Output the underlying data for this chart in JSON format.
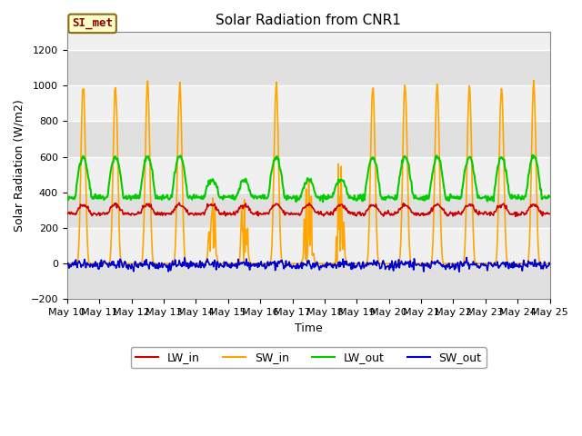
{
  "title": "Solar Radiation from CNR1",
  "xlabel": "Time",
  "ylabel": "Solar Radiation (W/m2)",
  "ylim": [
    -200,
    1300
  ],
  "x_tick_labels": [
    "May 10",
    "May 11",
    "May 12",
    "May 13",
    "May 14",
    "May 15",
    "May 16",
    "May 17",
    "May 18",
    "May 19",
    "May 20",
    "May 21",
    "May 22",
    "May 23",
    "May 24",
    "May 25"
  ],
  "legend_label": "SI_met",
  "legend_box_facecolor": "#ffffcc",
  "legend_box_edgecolor": "#8b6914",
  "legend_text_color": "#8b0000",
  "fig_facecolor": "#ffffff",
  "plot_facecolor": "#f0f0f0",
  "colors": {
    "LW_in": "#cc0000",
    "SW_in": "#ffa500",
    "LW_out": "#00cc00",
    "SW_out": "#0000cc"
  },
  "grid_color": "#ffffff",
  "stripe_color": "#e0e0e0",
  "title_fontsize": 11,
  "axis_label_fontsize": 9,
  "tick_fontsize": 8
}
